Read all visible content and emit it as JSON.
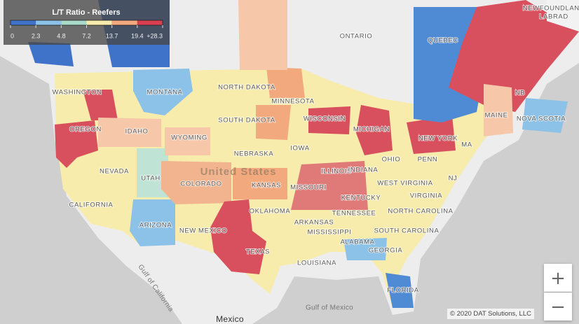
{
  "legend": {
    "title": "L/T Ratio - Reefers",
    "ticks": [
      0,
      2.3,
      4.8,
      7.2,
      13.7,
      19.4,
      {
        "value": 28.3,
        "label": "+28.3"
      }
    ],
    "colors": [
      "#3f73c9",
      "#8cc1e8",
      "#a8d9c9",
      "#f7ecac",
      "#f2a97e",
      "#d8404f"
    ]
  },
  "map_labels": [
    "WASHINGTON",
    "MONTANA",
    "NORTH DAKOTA",
    "MINNESOTA",
    "SOUTH DAKOTA",
    "WISCONSIN",
    "MICHIGAN",
    "OREGON",
    "IDAHO",
    "WYOMING",
    "NEBRASKA",
    "IOWA",
    "NEVADA",
    "UTAH",
    "COLORADO",
    "KANSAS",
    "MISSOURI",
    "ILLINOIS",
    "INDIANA",
    "OHIO",
    "PENN",
    "NEW YORK",
    "MAINE",
    "NB",
    "NOVA SCOTIA",
    "QUEBEC",
    "ONTARIO",
    "NEWFOUNDLAND",
    "LABRAD",
    "CALIFORNIA",
    "ARIZONA",
    "NEW MEXICO",
    "OKLAHOMA",
    "TEXAS",
    "ARKANSAS",
    "TENNESSEE",
    "KENTUCKY",
    "WEST VIRGINIA",
    "VIRGINIA",
    "NORTH CAROLINA",
    "SOUTH CAROLINA",
    "GEORGIA",
    "ALABAMA",
    "MISSISSIPPI",
    "LOUISIANA",
    "FLORIDA",
    "NJ",
    "MA"
  ],
  "geo_labels": {
    "country": "United States",
    "gulf_mexico": "Gulf of Mexico",
    "mexico": "Mexico",
    "gulf_california": "Gulf of California"
  },
  "controls": {
    "zoom_in": "+",
    "zoom_out": "−"
  },
  "attribution": "© 2020 DAT Solutions, LLC"
}
